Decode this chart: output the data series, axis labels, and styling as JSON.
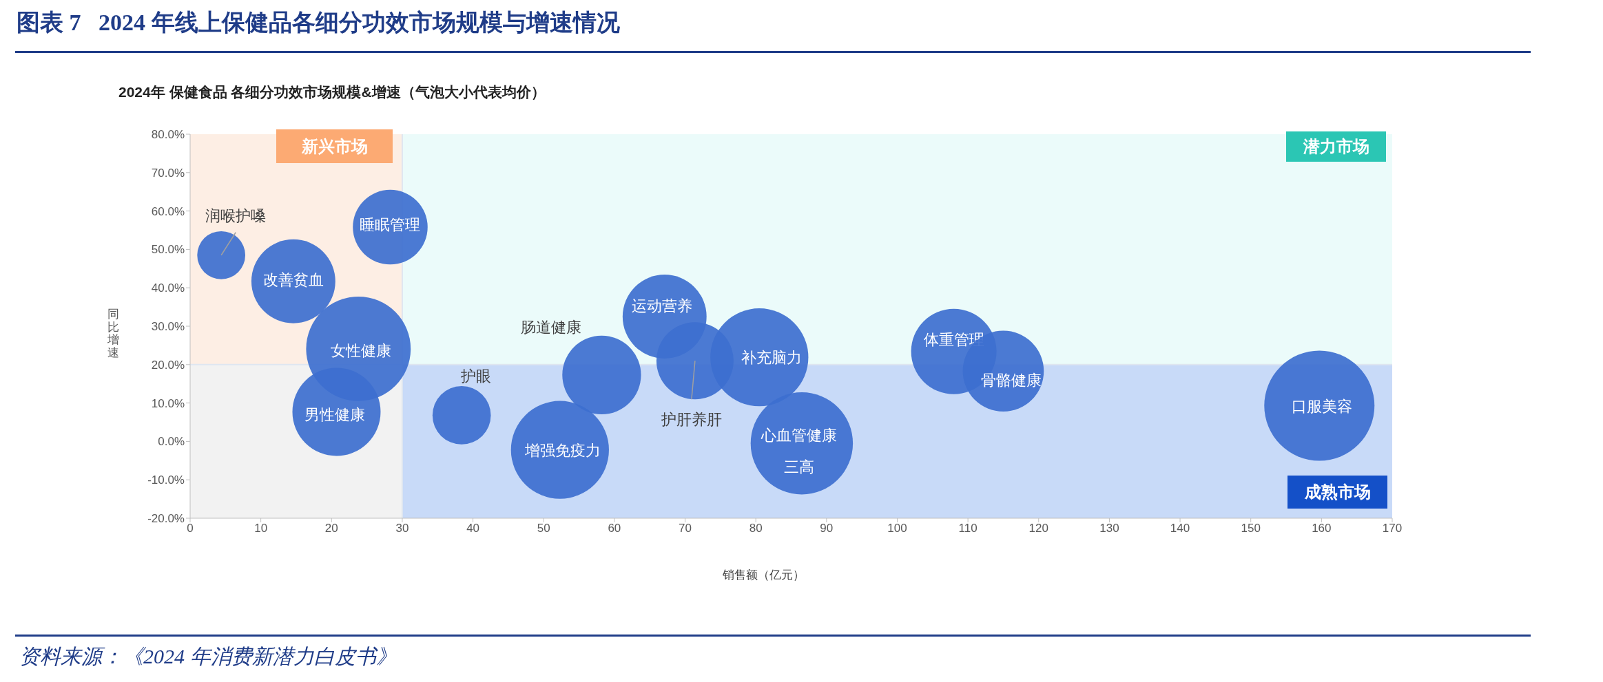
{
  "chart_data": {
    "type": "bubble",
    "title": "图表 7   2024 年线上保健品各细分功效市场规模与增速情况",
    "subtitle": "2024年 保健食品 各细分功效市场规模&增速（气泡大小代表均价）",
    "xlabel": "销售额（亿元）",
    "ylabel": "同比增速",
    "xlim": [
      0,
      170
    ],
    "xticks": [
      0,
      10,
      20,
      30,
      40,
      50,
      60,
      70,
      80,
      90,
      100,
      110,
      120,
      130,
      140,
      150,
      160,
      170
    ],
    "ylim": [
      -20,
      80
    ],
    "yticks": [
      {
        "value": -20,
        "label": "-20.0%"
      },
      {
        "value": -10,
        "label": "-10.0%"
      },
      {
        "value": 0,
        "label": "0.0%"
      },
      {
        "value": 10,
        "label": "10.0%"
      },
      {
        "value": 20,
        "label": "20.0%"
      },
      {
        "value": 30,
        "label": "30.0%"
      },
      {
        "value": 40,
        "label": "40.0%"
      },
      {
        "value": 50,
        "label": "50.0%"
      },
      {
        "value": 60,
        "label": "60.0%"
      },
      {
        "value": 70,
        "label": "70.0%"
      },
      {
        "value": 80,
        "label": "80.0%"
      }
    ],
    "ref_lines": [
      {
        "axis": "x",
        "value": 30,
        "color": "#dfe6f0"
      },
      {
        "axis": "y",
        "value": 20,
        "color": "#dfe6f0"
      }
    ],
    "series": [
      {
        "name": "润喉护嗓",
        "color": "#3d6fcf",
        "x": [
          4.4
        ],
        "values": [
          48.5
        ],
        "sizes": [
          0.19
        ]
      },
      {
        "name": "改善贫血",
        "color": "#3d6fcf",
        "x": [
          14.6
        ],
        "values": [
          41.7
        ],
        "sizes": [
          0.58
        ]
      },
      {
        "name": "睡眠管理",
        "color": "#3d6fcf",
        "x": [
          28.3
        ],
        "values": [
          55.8
        ],
        "sizes": [
          0.46
        ]
      },
      {
        "name": "女性健康",
        "color": "#3d6fcf",
        "x": [
          23.8
        ],
        "values": [
          24.1
        ],
        "sizes": [
          0.9
        ]
      },
      {
        "name": "男性健康",
        "color": "#3d6fcf",
        "x": [
          20.7
        ],
        "values": [
          7.7
        ],
        "sizes": [
          0.64
        ]
      },
      {
        "name": "护眼",
        "color": "#3d6fcf",
        "x": [
          38.4
        ],
        "values": [
          6.8
        ],
        "sizes": [
          0.28
        ]
      },
      {
        "name": "增强免疫力",
        "color": "#3d6fcf",
        "x": [
          52.3
        ],
        "values": [
          -2.2
        ],
        "sizes": [
          0.79
        ]
      },
      {
        "name": "肠道健康",
        "color": "#3d6fcf",
        "x": [
          58.2
        ],
        "values": [
          17.3
        ],
        "sizes": [
          0.51
        ]
      },
      {
        "name": "运动营养",
        "color": "#3d6fcf",
        "x": [
          67.1
        ],
        "values": [
          32.5
        ],
        "sizes": [
          0.58
        ]
      },
      {
        "name": "护肝养肝",
        "color": "#3d6fcf",
        "x": [
          71.4
        ],
        "values": [
          21.0
        ],
        "sizes": [
          0.49
        ]
      },
      {
        "name": "补充脑力",
        "color": "#3d6fcf",
        "x": [
          80.5
        ],
        "values": [
          21.9
        ],
        "sizes": [
          0.79
        ]
      },
      {
        "name": "心血管健康三高",
        "color": "#3d6fcf",
        "x": [
          86.5
        ],
        "values": [
          -0.5
        ],
        "sizes": [
          0.86
        ]
      },
      {
        "name": "体重管理",
        "color": "#3d6fcf",
        "x": [
          108.0
        ],
        "values": [
          23.4
        ],
        "sizes": [
          0.6
        ]
      },
      {
        "name": "骨骼健康",
        "color": "#3d6fcf",
        "x": [
          115.0
        ],
        "values": [
          18.3
        ],
        "sizes": [
          0.54
        ]
      },
      {
        "name": "口服美容",
        "color": "#3d6fcf",
        "x": [
          159.7
        ],
        "values": [
          9.3
        ],
        "sizes": [
          1
        ]
      }
    ],
    "annotations": [
      "新兴市场",
      "潜力市场",
      "成熟市场",
      "资料来源：《2024 年消费新潜力白皮书》"
    ]
  }
}
